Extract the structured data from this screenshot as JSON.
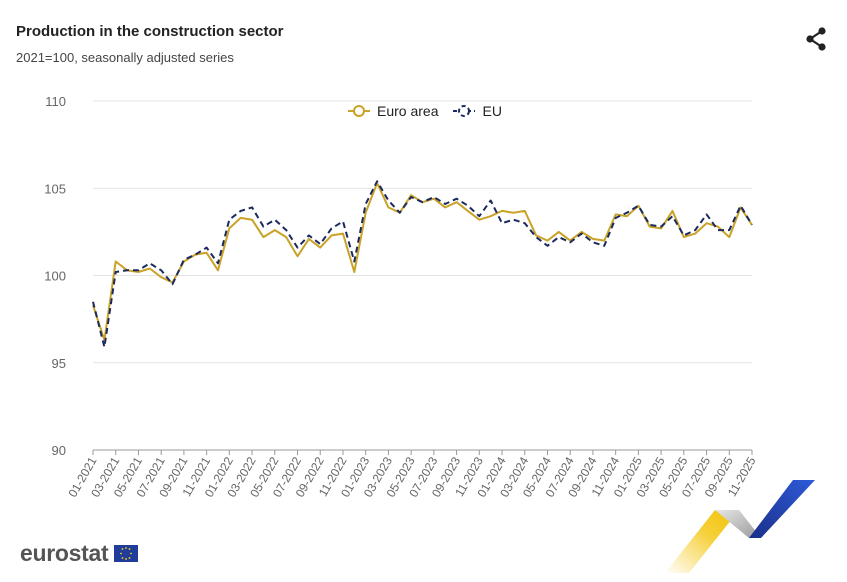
{
  "header": {
    "title": "Production in the construction sector",
    "subtitle": "2021=100, seasonally adjusted series",
    "share_icon": "share-icon"
  },
  "branding": {
    "logo_text": "eurostat",
    "flag_icon": "eu-flag-icon"
  },
  "colors": {
    "euro_area": "#C9A227",
    "eu": "#1B2A5E",
    "grid": "#e3e3e3",
    "axis_text": "#666666"
  },
  "chart_data": {
    "type": "line",
    "title": "Production in the construction sector",
    "subtitle": "2021=100, seasonally adjusted series",
    "xlabel": "",
    "ylabel": "",
    "ylim": [
      90,
      110
    ],
    "yticks": [
      90,
      95,
      100,
      105,
      110
    ],
    "grid": true,
    "legend": "top-center",
    "x": [
      "01-2021",
      "02-2021",
      "03-2021",
      "04-2021",
      "05-2021",
      "06-2021",
      "07-2021",
      "08-2021",
      "09-2021",
      "10-2021",
      "11-2021",
      "12-2021",
      "01-2022",
      "02-2022",
      "03-2022",
      "04-2022",
      "05-2022",
      "06-2022",
      "07-2022",
      "08-2022",
      "09-2022",
      "10-2022",
      "11-2022",
      "12-2022",
      "01-2023",
      "02-2023",
      "03-2023",
      "04-2023",
      "05-2023",
      "06-2023",
      "07-2023",
      "08-2023",
      "09-2023",
      "10-2023",
      "11-2023",
      "12-2023",
      "01-2024",
      "02-2024",
      "03-2024",
      "04-2024",
      "05-2024",
      "06-2024",
      "07-2024",
      "08-2024",
      "09-2024",
      "10-2024",
      "11-2024",
      "12-2024",
      "01-2025",
      "02-2025",
      "03-2025",
      "04-2025",
      "05-2025",
      "06-2025",
      "07-2025",
      "08-2025",
      "09-2025",
      "10-2025",
      "11-2025"
    ],
    "x_tick_labels": [
      "01-2021",
      "03-2021",
      "05-2021",
      "07-2021",
      "09-2021",
      "11-2021",
      "01-2022",
      "03-2022",
      "05-2022",
      "07-2022",
      "09-2022",
      "11-2022",
      "01-2023",
      "03-2023",
      "05-2023",
      "07-2023",
      "09-2023",
      "11-2023",
      "01-2024",
      "03-2024",
      "05-2024",
      "07-2024",
      "09-2024",
      "11-2024",
      "01-2025",
      "03-2025",
      "05-2025",
      "07-2025",
      "09-2025",
      "11-2025"
    ],
    "series": [
      {
        "name": "Euro area",
        "color": "#C9A227",
        "dash": false,
        "values": [
          98.3,
          96.3,
          100.8,
          100.3,
          100.2,
          100.4,
          99.9,
          99.6,
          100.8,
          101.2,
          101.3,
          100.3,
          102.7,
          103.3,
          103.2,
          102.2,
          102.6,
          102.2,
          101.1,
          102.1,
          101.6,
          102.3,
          102.4,
          100.2,
          103.6,
          105.3,
          103.9,
          103.6,
          104.6,
          104.2,
          104.4,
          103.9,
          104.2,
          103.7,
          103.2,
          103.4,
          103.7,
          103.6,
          103.7,
          102.3,
          102.0,
          102.5,
          102.0,
          102.5,
          102.1,
          102.0,
          103.5,
          103.4,
          104.0,
          102.8,
          102.7,
          103.7,
          102.2,
          102.4,
          103.0,
          102.8,
          102.2,
          103.9,
          102.9
        ]
      },
      {
        "name": "EU",
        "color": "#1B2A5E",
        "dash": true,
        "values": [
          98.5,
          95.9,
          100.2,
          100.3,
          100.3,
          100.7,
          100.3,
          99.5,
          100.9,
          101.2,
          101.6,
          100.7,
          103.2,
          103.7,
          103.9,
          102.8,
          103.2,
          102.6,
          101.6,
          102.3,
          101.8,
          102.7,
          103.1,
          100.8,
          104.1,
          105.4,
          104.3,
          103.6,
          104.5,
          104.2,
          104.5,
          104.1,
          104.4,
          104.0,
          103.4,
          104.3,
          103.0,
          103.2,
          103.0,
          102.2,
          101.7,
          102.2,
          101.9,
          102.4,
          101.9,
          101.7,
          103.3,
          103.6,
          104.0,
          102.9,
          102.8,
          103.4,
          102.3,
          102.6,
          103.5,
          102.6,
          102.6,
          104.0,
          102.9
        ]
      }
    ]
  }
}
